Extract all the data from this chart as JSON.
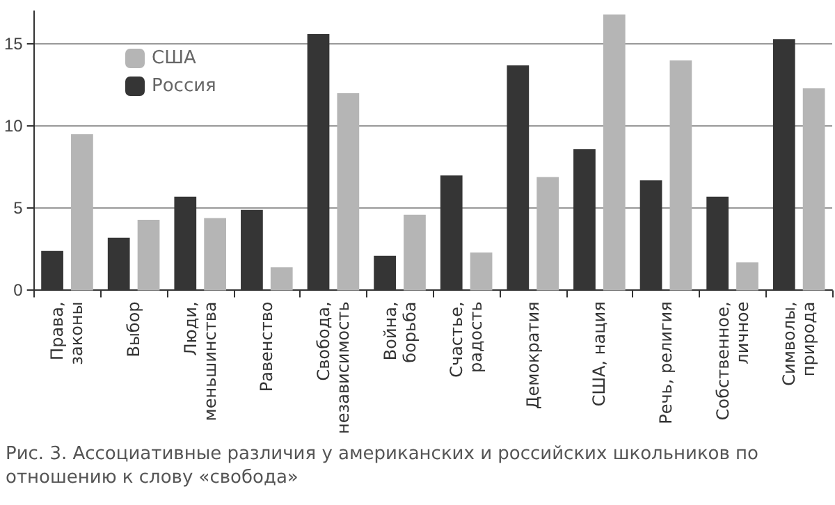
{
  "chart_data": {
    "type": "bar",
    "categories": [
      "Права,\nзаконы",
      "Выбор",
      "Люди,\nменьшинства",
      "Равенство",
      "Свобода,\nнезависимость",
      "Война,\nборьба",
      "Счастье,\nрадость",
      "Демократия",
      "США, нация",
      "Речь, религия",
      "Собственное,\nличное",
      "Символы,\nприрода"
    ],
    "series": [
      {
        "name": "Россия",
        "color": "#353535",
        "values": [
          2.4,
          3.2,
          5.7,
          4.9,
          15.6,
          2.1,
          7.0,
          13.7,
          8.6,
          6.7,
          5.7,
          15.3
        ]
      },
      {
        "name": "США",
        "color": "#b5b5b5",
        "values": [
          9.5,
          4.3,
          4.4,
          1.4,
          12.0,
          4.6,
          2.3,
          6.9,
          16.8,
          14.0,
          1.7,
          12.3
        ]
      }
    ],
    "ylim": [
      0,
      17
    ],
    "yticks": [
      0,
      5,
      10,
      15
    ],
    "grid": "y",
    "legend": "top left",
    "annotations": [
      "Рис. 3. Ассоциативные различия у американских и российских школьников по отношению к слову «свобода»"
    ]
  }
}
